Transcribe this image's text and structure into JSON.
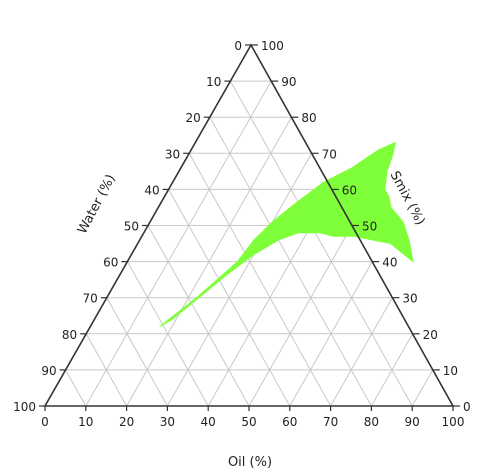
{
  "chart_data": {
    "type": "ternary",
    "axes": {
      "oil": {
        "label": "Oil (%)",
        "ticks": [
          "0",
          "10",
          "20",
          "30",
          "40",
          "50",
          "60",
          "70",
          "80",
          "90",
          "100"
        ]
      },
      "smix": {
        "label": "Smix (%)",
        "ticks": [
          "0",
          "10",
          "20",
          "30",
          "40",
          "50",
          "60",
          "70",
          "80",
          "90",
          "100"
        ]
      },
      "water": {
        "label": "Water (%)",
        "ticks": [
          "0",
          "10",
          "20",
          "30",
          "40",
          "50",
          "60",
          "70",
          "80",
          "90",
          "100"
        ]
      }
    },
    "grid": true,
    "grid_step": 10,
    "region": {
      "fill": "#7fff3a",
      "points": [
        {
          "oil": 17,
          "smix": 22,
          "water": 61
        },
        {
          "oil": 22,
          "smix": 30,
          "water": 48
        },
        {
          "oil": 27,
          "smix": 40,
          "water": 33
        },
        {
          "oil": 28,
          "smix": 46,
          "water": 26
        },
        {
          "oil": 30,
          "smix": 51,
          "water": 19
        },
        {
          "oil": 33,
          "smix": 56,
          "water": 11
        },
        {
          "oil": 37,
          "smix": 62,
          "water": 1
        },
        {
          "oil": 42,
          "smix": 66,
          "water": -8
        },
        {
          "oil": 46,
          "smix": 71,
          "water": -17
        },
        {
          "oil": 49,
          "smix": 73,
          "water": -22
        },
        {
          "oil": 50,
          "smix": 70,
          "water": -20
        },
        {
          "oil": 51,
          "smix": 65,
          "water": -16
        },
        {
          "oil": 53,
          "smix": 60,
          "water": -13
        },
        {
          "oil": 55,
          "smix": 58,
          "water": -13
        },
        {
          "oil": 57,
          "smix": 55,
          "water": -12
        },
        {
          "oil": 62,
          "smix": 51,
          "water": -13
        },
        {
          "oil": 66,
          "smix": 46,
          "water": -12
        },
        {
          "oil": 70,
          "smix": 40,
          "water": -10
        },
        {
          "oil": 62,
          "smix": 45,
          "water": -7
        },
        {
          "oil": 57,
          "smix": 46,
          "water": -3
        },
        {
          "oil": 52,
          "smix": 47,
          "water": 1
        },
        {
          "oil": 47,
          "smix": 47,
          "water": 6
        },
        {
          "oil": 43,
          "smix": 48,
          "water": 9
        },
        {
          "oil": 38,
          "smix": 48,
          "water": 14
        },
        {
          "oil": 34,
          "smix": 46,
          "water": 20
        },
        {
          "oil": 30,
          "smix": 42,
          "water": 28
        },
        {
          "oil": 26,
          "smix": 36,
          "water": 38
        },
        {
          "oil": 22,
          "smix": 29,
          "water": 49
        },
        {
          "oil": 19,
          "smix": 24,
          "water": 57
        }
      ]
    }
  }
}
